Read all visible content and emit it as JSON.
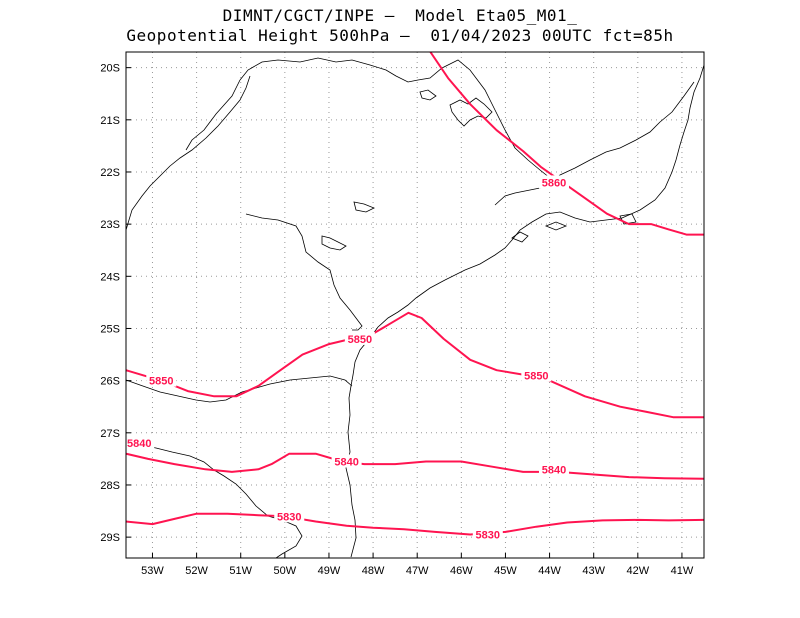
{
  "title": {
    "line1": "DIMNT/CGCT/INPE –  Model Eta05_M01_",
    "line2": "Geopotential Height 500hPa –  01/04/2023 00UTC fct=85h"
  },
  "map": {
    "lon_range": [
      -53.6,
      -40.5
    ],
    "lat_range": [
      -29.4,
      -19.7
    ],
    "lon_ticks": [
      -53,
      -52,
      -51,
      -50,
      -49,
      -48,
      -47,
      -46,
      -45,
      -44,
      -43,
      -42,
      -41
    ],
    "lon_tick_labels": [
      "53W",
      "52W",
      "51W",
      "50W",
      "49W",
      "48W",
      "47W",
      "46W",
      "45W",
      "44W",
      "43W",
      "42W",
      "41W"
    ],
    "lat_ticks": [
      -20,
      -21,
      -22,
      -23,
      -24,
      -25,
      -26,
      -27,
      -28,
      -29
    ],
    "lat_tick_labels": [
      "20S",
      "21S",
      "22S",
      "23S",
      "24S",
      "25S",
      "26S",
      "27S",
      "28S",
      "29S"
    ],
    "contour_color": "#ff1450",
    "coast_color": "#000000",
    "grid_color": "#9a9a9a"
  },
  "contours": [
    {
      "value": 5860,
      "label": "5860",
      "points": [
        [
          -46.7,
          -19.7
        ],
        [
          -46.3,
          -20.2
        ],
        [
          -45.8,
          -20.7
        ],
        [
          -45.2,
          -21.2
        ],
        [
          -44.6,
          -21.6
        ],
        [
          -44.2,
          -21.9
        ],
        [
          -43.7,
          -22.2
        ],
        [
          -43.2,
          -22.5
        ],
        [
          -42.7,
          -22.8
        ],
        [
          -42.2,
          -23.0
        ],
        [
          -41.7,
          -23.0
        ],
        [
          -41.3,
          -23.1
        ],
        [
          -40.9,
          -23.2
        ],
        [
          -40.5,
          -23.2
        ]
      ],
      "label_at": [
        -43.9,
        -22.2
      ]
    },
    {
      "value": 5850,
      "label": "5850",
      "points": [
        [
          -53.6,
          -25.8
        ],
        [
          -53.2,
          -25.9
        ],
        [
          -52.8,
          -26.0
        ],
        [
          -52.2,
          -26.2
        ],
        [
          -51.6,
          -26.3
        ],
        [
          -51.1,
          -26.3
        ],
        [
          -50.6,
          -26.1
        ],
        [
          -50.1,
          -25.8
        ],
        [
          -49.6,
          -25.5
        ],
        [
          -49.0,
          -25.3
        ],
        [
          -48.5,
          -25.2
        ],
        [
          -48.0,
          -25.1
        ],
        [
          -47.6,
          -24.9
        ],
        [
          -47.2,
          -24.7
        ],
        [
          -46.9,
          -24.8
        ],
        [
          -46.4,
          -25.2
        ],
        [
          -45.8,
          -25.6
        ],
        [
          -45.2,
          -25.8
        ],
        [
          -44.5,
          -25.9
        ],
        [
          -44.0,
          -26.0
        ],
        [
          -43.2,
          -26.3
        ],
        [
          -42.4,
          -26.5
        ],
        [
          -41.8,
          -26.6
        ],
        [
          -41.2,
          -26.7
        ],
        [
          -40.5,
          -26.7
        ]
      ],
      "label_at": [
        [
          -48.3,
          -25.2
        ],
        [
          -52.8,
          -26.0
        ],
        [
          -44.3,
          -25.9
        ]
      ]
    },
    {
      "value": 5840,
      "label": "5840",
      "points": [
        [
          -53.6,
          -27.4
        ],
        [
          -53.1,
          -27.5
        ],
        [
          -52.5,
          -27.6
        ],
        [
          -51.8,
          -27.7
        ],
        [
          -51.2,
          -27.75
        ],
        [
          -50.6,
          -27.7
        ],
        [
          -50.3,
          -27.6
        ],
        [
          -49.9,
          -27.4
        ],
        [
          -49.3,
          -27.4
        ],
        [
          -48.7,
          -27.55
        ],
        [
          -48.2,
          -27.6
        ],
        [
          -47.5,
          -27.6
        ],
        [
          -46.8,
          -27.55
        ],
        [
          -46.0,
          -27.55
        ],
        [
          -45.3,
          -27.65
        ],
        [
          -44.6,
          -27.75
        ],
        [
          -43.8,
          -27.75
        ],
        [
          -43.0,
          -27.8
        ],
        [
          -42.2,
          -27.85
        ],
        [
          -41.4,
          -27.87
        ],
        [
          -40.5,
          -27.88
        ]
      ],
      "label_at": [
        [
          -53.3,
          -27.2
        ],
        [
          -48.6,
          -27.55
        ],
        [
          -43.9,
          -27.7
        ]
      ]
    },
    {
      "value": 5830,
      "label": "5830",
      "points": [
        [
          -53.6,
          -28.7
        ],
        [
          -53.0,
          -28.75
        ],
        [
          -52.5,
          -28.65
        ],
        [
          -52.0,
          -28.55
        ],
        [
          -51.3,
          -28.55
        ],
        [
          -50.6,
          -28.58
        ],
        [
          -50.0,
          -28.6
        ],
        [
          -49.3,
          -28.7
        ],
        [
          -48.6,
          -28.78
        ],
        [
          -48.0,
          -28.82
        ],
        [
          -47.3,
          -28.85
        ],
        [
          -46.6,
          -28.9
        ],
        [
          -45.8,
          -28.95
        ],
        [
          -45.0,
          -28.9
        ],
        [
          -44.3,
          -28.8
        ],
        [
          -43.6,
          -28.72
        ],
        [
          -42.8,
          -28.68
        ],
        [
          -42.0,
          -28.67
        ],
        [
          -41.3,
          -28.68
        ],
        [
          -40.5,
          -28.67
        ]
      ],
      "label_at": [
        [
          -49.9,
          -28.6
        ],
        [
          -45.4,
          -28.95
        ]
      ]
    }
  ]
}
